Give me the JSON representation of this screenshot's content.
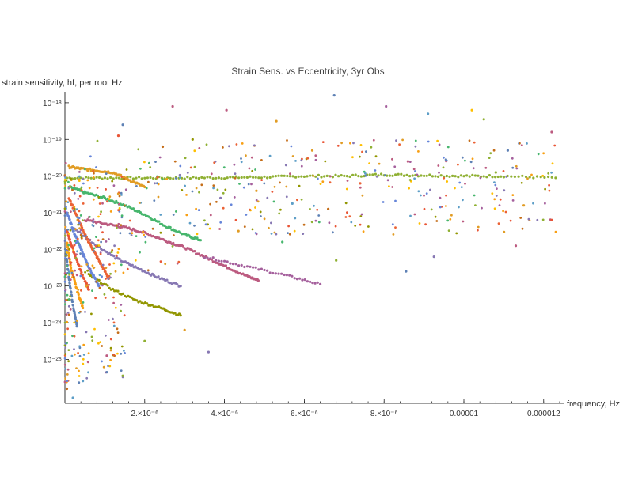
{
  "chart_data": {
    "type": "scatter",
    "title": "Strain Sens. vs Eccentricity, 3yr Obs",
    "xlabel": "frequency, Hz",
    "ylabel": "strain sensitivity, hf, per root Hz",
    "xlim": [
      0,
      1.25e-05
    ],
    "ylim_log10": [
      -26.2,
      -17.7
    ],
    "y_scale": "log",
    "grid": false,
    "x_ticks": [
      {
        "value": 2e-06,
        "label": "2.×10⁻⁶"
      },
      {
        "value": 4e-06,
        "label": "4.×10⁻⁶"
      },
      {
        "value": 6e-06,
        "label": "6.×10⁻⁶"
      },
      {
        "value": 8e-06,
        "label": "8.×10⁻⁶"
      },
      {
        "value": 1e-05,
        "label": "0.00001"
      },
      {
        "value": 1.2e-05,
        "label": "0.000012"
      }
    ],
    "y_ticks": [
      {
        "exp": -18,
        "label": "10⁻¹⁸"
      },
      {
        "exp": -19,
        "label": "10⁻¹⁹"
      },
      {
        "exp": -20,
        "label": "10⁻²⁰"
      },
      {
        "exp": -21,
        "label": "10⁻²¹"
      },
      {
        "exp": -22,
        "label": "10⁻²²"
      },
      {
        "exp": -23,
        "label": "10⁻²³"
      },
      {
        "exp": -24,
        "label": "10⁻²⁴"
      },
      {
        "exp": -25,
        "label": "10⁻²⁵"
      }
    ],
    "colors": [
      "#5e81b5",
      "#e19c24",
      "#8fb032",
      "#eb6235",
      "#8778b3",
      "#c56e1a",
      "#5d9ec7",
      "#ffbf00",
      "#a5609d",
      "#929600",
      "#e95536",
      "#6685d9",
      "#f89f13",
      "#bc5b80",
      "#47b66d"
    ],
    "series": [
      {
        "color": "#8fb032",
        "x": [
          5e-08,
          1e-06,
          2e-06,
          3e-06,
          4e-06,
          5e-06,
          6e-06,
          7e-06,
          8e-06,
          9e-06,
          1e-05,
          1.1e-05,
          1.23e-05
        ],
        "log10_y": [
          -20.05,
          -20.05,
          -20.05,
          -20.05,
          -20.04,
          -20.03,
          -20.0,
          -20.0,
          -19.96,
          -19.98,
          -20.0,
          -20.0,
          -20.05
        ]
      },
      {
        "color": "#47b66d",
        "x": [
          1e-07,
          5e-07,
          1e-06,
          1.5e-06,
          2e-06,
          2.5e-06,
          3e-06,
          3.4e-06
        ],
        "log10_y": [
          -20.3,
          -20.45,
          -20.6,
          -20.8,
          -21.05,
          -21.35,
          -21.6,
          -21.75
        ]
      },
      {
        "color": "#bc5b80",
        "x": [
          5e-07,
          1e-06,
          1.5e-06,
          2e-06,
          2.5e-06,
          3e-06,
          3.5e-06,
          4e-06,
          4.5e-06,
          4.85e-06
        ],
        "log10_y": [
          -21.2,
          -21.3,
          -21.4,
          -21.55,
          -21.75,
          -21.95,
          -22.2,
          -22.45,
          -22.7,
          -22.85
        ]
      },
      {
        "color": "#8778b3",
        "x": [
          2e-07,
          8e-07,
          1.3e-06,
          1.8e-06,
          2.3e-06,
          2.9e-06
        ],
        "log10_y": [
          -21.4,
          -21.9,
          -22.25,
          -22.5,
          -22.75,
          -23.0
        ]
      },
      {
        "color": "#a5609d",
        "x": [
          3.5e-06,
          4.5e-06,
          5.5e-06,
          6.4e-06
        ],
        "log10_y": [
          -22.2,
          -22.45,
          -22.7,
          -22.95
        ]
      },
      {
        "color": "#e19c24",
        "x": [
          1e-07,
          4e-07,
          8e-07,
          1.2e-06,
          1.6e-06,
          2e-06
        ],
        "log10_y": [
          -19.75,
          -19.8,
          -19.85,
          -19.9,
          -20.1,
          -20.3
        ]
      },
      {
        "color": "#929600",
        "x": [
          6e-07,
          1.2e-06,
          1.8e-06,
          2.4e-06,
          2.9e-06
        ],
        "log10_y": [
          -22.7,
          -23.1,
          -23.4,
          -23.6,
          -23.8
        ]
      },
      {
        "color": "#eb6235",
        "x": [
          1e-07,
          3e-07,
          5e-07,
          7e-07,
          9e-07,
          1.1e-06
        ],
        "log10_y": [
          -20.6,
          -21.1,
          -21.6,
          -22.0,
          -22.4,
          -22.8
        ]
      },
      {
        "color": "#6685d9",
        "x": [
          5e-08,
          2.5e-07,
          4.5e-07,
          6.5e-07,
          8.5e-07
        ],
        "log10_y": [
          -21.0,
          -21.6,
          -22.1,
          -22.6,
          -23.0
        ]
      },
      {
        "color": "#e95536",
        "x": [
          5e-08,
          2e-07,
          4e-07,
          6e-07
        ],
        "log10_y": [
          -21.5,
          -22.0,
          -22.6,
          -23.1
        ]
      },
      {
        "color": "#f89f13",
        "x": [
          5e-08,
          1.5e-07,
          3e-07,
          4.5e-07
        ],
        "log10_y": [
          -21.8,
          -22.5,
          -23.1,
          -23.6
        ]
      },
      {
        "color": "#5e81b5",
        "x": [
          2e-08,
          1e-07,
          2e-07,
          3e-07
        ],
        "log10_y": [
          -22.0,
          -22.8,
          -23.5,
          -24.1
        ]
      }
    ],
    "scatter_points": [
      {
        "color": "#5e81b5",
        "x": 6.75e-06,
        "log10_y": -17.8
      },
      {
        "color": "#bc5b80",
        "x": 2.7e-06,
        "log10_y": -18.1
      },
      {
        "color": "#bc5b80",
        "x": 4.05e-06,
        "log10_y": -18.2
      },
      {
        "color": "#a5609d",
        "x": 8.05e-06,
        "log10_y": -18.1
      },
      {
        "color": "#ffbf00",
        "x": 1.02e-05,
        "log10_y": -18.2
      },
      {
        "color": "#bc5b80",
        "x": 1.22e-05,
        "log10_y": -18.8
      },
      {
        "color": "#5e81b5",
        "x": 1.45e-06,
        "log10_y": -18.6
      },
      {
        "color": "#e19c24",
        "x": 5.3e-06,
        "log10_y": -18.5
      },
      {
        "color": "#8fb032",
        "x": 1.05e-05,
        "log10_y": -18.45
      },
      {
        "color": "#5d9ec7",
        "x": 9.1e-06,
        "log10_y": -18.3
      },
      {
        "color": "#e95536",
        "x": 1.34e-06,
        "log10_y": -18.9
      },
      {
        "color": "#c56e1a",
        "x": 2.45e-06,
        "log10_y": -19.2
      },
      {
        "color": "#929600",
        "x": 3.2e-06,
        "log10_y": -19.0
      },
      {
        "color": "#e19c24",
        "x": 6.2e-06,
        "log10_y": -19.3
      },
      {
        "color": "#5e81b5",
        "x": 1.11e-05,
        "log10_y": -19.3
      },
      {
        "color": "#bc5b80",
        "x": 8.6e-06,
        "log10_y": -19.6
      },
      {
        "color": "#5e81b5",
        "x": 9.55e-06,
        "log10_y": -19.55
      },
      {
        "color": "#8fb032",
        "x": 1.08e-05,
        "log10_y": -19.9
      },
      {
        "color": "#eb6235",
        "x": 7.4e-06,
        "log10_y": -20.2
      },
      {
        "color": "#8778b3",
        "x": 3.9e-06,
        "log10_y": -20.6
      },
      {
        "color": "#e19c24",
        "x": 4.8e-06,
        "log10_y": -20.4
      },
      {
        "color": "#5d9ec7",
        "x": 5.7e-06,
        "log10_y": -20.75
      },
      {
        "color": "#c56e1a",
        "x": 6.6e-06,
        "log10_y": -20.9
      },
      {
        "color": "#a5609d",
        "x": 9.4e-06,
        "log10_y": -20.6
      },
      {
        "color": "#e19c24",
        "x": 1.15e-05,
        "log10_y": -20.8
      },
      {
        "color": "#e95536",
        "x": 1.22e-05,
        "log10_y": -21.2
      },
      {
        "color": "#bc5b80",
        "x": 1.13e-05,
        "log10_y": -21.9
      },
      {
        "color": "#8778b3",
        "x": 9.25e-06,
        "log10_y": -22.2
      },
      {
        "color": "#5e81b5",
        "x": 8.55e-06,
        "log10_y": -22.6
      },
      {
        "color": "#8fb032",
        "x": 6.8e-06,
        "log10_y": -22.3
      },
      {
        "color": "#47b66d",
        "x": 5.45e-06,
        "log10_y": -21.8
      },
      {
        "color": "#e19c24",
        "x": 4.35e-06,
        "log10_y": -21.5
      },
      {
        "color": "#5e81b5",
        "x": 1.05e-06,
        "log10_y": -25.35
      },
      {
        "color": "#8fb032",
        "x": 1.45e-06,
        "log10_y": -25.45
      },
      {
        "color": "#bc5b80",
        "x": 1.05e-06,
        "log10_y": -24.9
      },
      {
        "color": "#e19c24",
        "x": 3e-06,
        "log10_y": -24.2
      },
      {
        "color": "#8778b3",
        "x": 3.6e-06,
        "log10_y": -24.8
      },
      {
        "color": "#5d9ec7",
        "x": 2e-07,
        "log10_y": -26.05
      },
      {
        "color": "#c56e1a",
        "x": 5e-08,
        "log10_y": -25.8
      },
      {
        "color": "#8fb032",
        "x": 2e-06,
        "log10_y": -24.5
      }
    ]
  }
}
